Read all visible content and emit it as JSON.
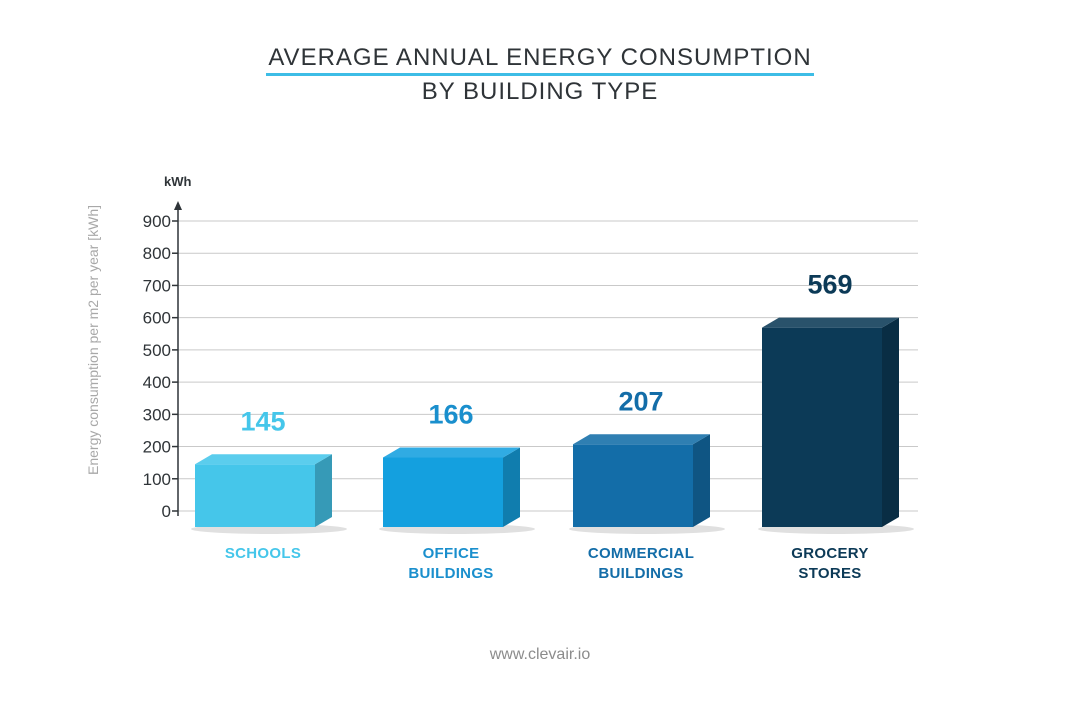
{
  "page": {
    "title_line1": "AVERAGE ANNUAL ENERGY CONSUMPTION",
    "title_line2": "BY BUILDING TYPE",
    "footer": "www.clevair.io"
  },
  "chart_data": {
    "type": "bar",
    "title": "AVERAGE ANNUAL ENERGY CONSUMPTION BY BUILDING TYPE",
    "ylabel": "Energy consumption per m2 per year [kWh]",
    "yunit": "kWh",
    "ylim": [
      0,
      900
    ],
    "yticks": [
      0,
      100,
      200,
      300,
      400,
      500,
      600,
      700,
      800,
      900
    ],
    "grid": true,
    "categories": [
      {
        "lines": [
          "SCHOOLS"
        ],
        "value": 145,
        "color": "#45c6ea",
        "label_color": "#45c6ea"
      },
      {
        "lines": [
          "OFFICE",
          "BUILDINGS"
        ],
        "value": 166,
        "color": "#14a0df",
        "label_color": "#1a8fcd"
      },
      {
        "lines": [
          "COMMERCIAL",
          "BUILDINGS"
        ],
        "value": 207,
        "color": "#136da8",
        "label_color": "#136da8"
      },
      {
        "lines": [
          "GROCERY",
          "STORES"
        ],
        "value": 569,
        "color": "#0c3a57",
        "label_color": "#0c3a57"
      }
    ]
  }
}
